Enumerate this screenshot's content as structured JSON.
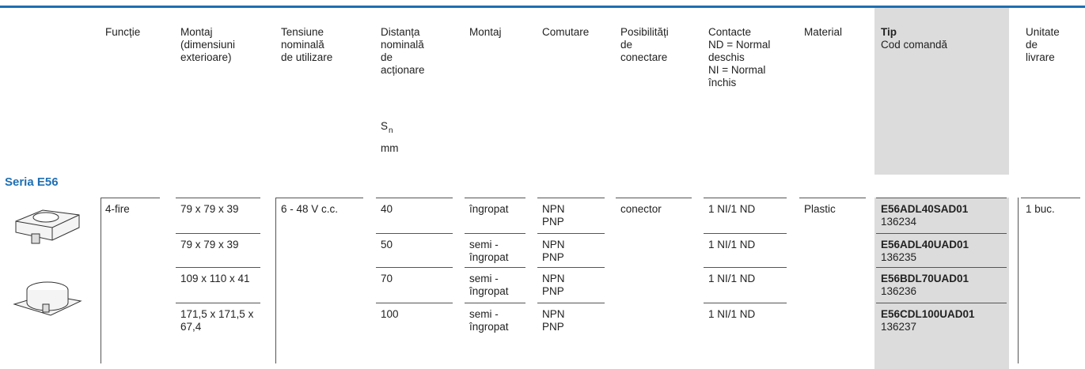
{
  "header": {
    "columns": [
      {
        "lines": [
          "Funcție"
        ]
      },
      {
        "lines": [
          "Montaj",
          "(dimensiuni",
          "exterioare)"
        ]
      },
      {
        "lines": [
          "Tensiune",
          "nominală",
          "de utilizare"
        ]
      },
      {
        "lines": [
          "Distanța",
          "nominală",
          "de",
          "acționare"
        ],
        "symbol": "S",
        "subscript": "n",
        "unit": "mm"
      },
      {
        "lines": [
          "Montaj"
        ]
      },
      {
        "lines": [
          "Comutare"
        ]
      },
      {
        "lines": [
          "Posibilități",
          "de",
          "conectare"
        ]
      },
      {
        "lines": [
          "Contacte",
          "ND = Normal",
          "deschis",
          "NI = Normal",
          "închis"
        ]
      },
      {
        "lines": [
          "Material"
        ]
      },
      {
        "bold": "Tip",
        "lines": [
          "Cod comandă"
        ]
      },
      {
        "lines": [
          "Unitate",
          "de",
          "livrare"
        ]
      }
    ]
  },
  "table": {
    "section": "Seria E56",
    "rows": [
      {
        "0": [
          "4-fire"
        ],
        "1": [
          "79 x 79 x 39"
        ],
        "2": [
          "6 - 48 V c.c."
        ],
        "3": [
          "40"
        ],
        "4": [
          "îngropat"
        ],
        "5": [
          "NPN",
          "PNP"
        ],
        "6": [
          "conector"
        ],
        "7": [
          "1 NI/1 ND"
        ],
        "8": [
          "Plastic"
        ],
        "9": [
          "E56ADL40SAD01",
          "136234"
        ],
        "10": [
          "1 buc."
        ]
      },
      {
        "1": [
          "79 x 79 x 39"
        ],
        "3": [
          "50"
        ],
        "4": [
          "semi -",
          "îngropat"
        ],
        "5": [
          "NPN",
          "PNP"
        ],
        "7": [
          "1 NI/1 ND"
        ],
        "9": [
          "E56ADL40UAD01",
          "136235"
        ]
      },
      {
        "1": [
          "109 x 110 x 41"
        ],
        "3": [
          "70"
        ],
        "4": [
          "semi -",
          "îngropat"
        ],
        "5": [
          "NPN",
          "PNP"
        ],
        "7": [
          "1 NI/1 ND"
        ],
        "9": [
          "E56BDL70UAD01",
          "136236"
        ]
      },
      {
        "1": [
          "171,5 x 171,5 x",
          "67,4"
        ],
        "3": [
          "100"
        ],
        "4": [
          "semi -",
          "îngropat"
        ],
        "5": [
          "NPN",
          "PNP"
        ],
        "7": [
          "1 NI/1 ND"
        ],
        "9": [
          "E56CDL100UAD01",
          "136237"
        ]
      }
    ]
  }
}
